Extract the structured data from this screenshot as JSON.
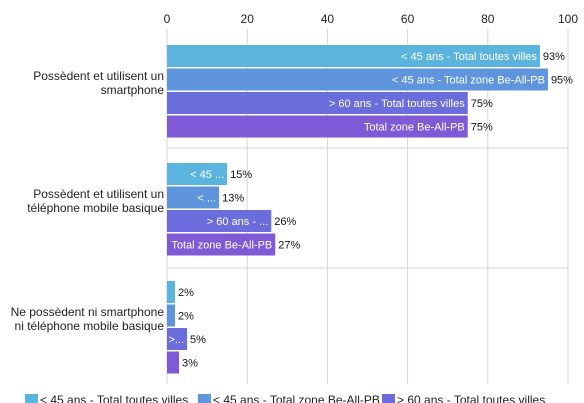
{
  "chart_data": {
    "type": "bar",
    "orientation": "horizontal",
    "categories": [
      [
        "Possèdent et utilisent un",
        "smartphone"
      ],
      [
        "Possèdent et utilisent un",
        "téléphone mobile basique"
      ],
      [
        "Ne possèdent ni smartphone",
        "ni téléphone mobile basique"
      ]
    ],
    "series": [
      {
        "name": "< 45 ans - Total toutes villes",
        "color": "#5ab4de",
        "values": [
          93,
          15,
          2
        ],
        "bar_labels": [
          "< 45 ans - Total toutes villes",
          "< 45 ...",
          ""
        ],
        "value_labels": [
          "93%",
          "15%",
          "2%"
        ]
      },
      {
        "name": "< 45 ans - Total zone Be-All-PB",
        "color": "#5e95dd",
        "values": [
          95,
          13,
          2
        ],
        "bar_labels": [
          "< 45 ans - Total zone Be-All-PB",
          "< ...",
          ""
        ],
        "value_labels": [
          "95%",
          "13%",
          "2%"
        ]
      },
      {
        "name": "> 60 ans - Total toutes villes",
        "color": "#6a6ddb",
        "values": [
          75,
          26,
          5
        ],
        "bar_labels": [
          "> 60 ans - Total toutes villes",
          "> 60 ans - ...",
          ">..."
        ],
        "value_labels": [
          "75%",
          "26%",
          "5%"
        ]
      },
      {
        "name": "Total zone Be-All-PB",
        "color": "#7e5ad6",
        "values": [
          75,
          27,
          3
        ],
        "bar_labels": [
          "Total zone Be-All-PB",
          "Total zone Be-All-PB",
          ""
        ],
        "value_labels": [
          "75%",
          "27%",
          "3%"
        ]
      }
    ],
    "x_ticks": [
      "0",
      "20",
      "40",
      "60",
      "80",
      "100"
    ],
    "xlim": [
      0,
      100
    ],
    "grid": true,
    "legend_position": "bottom"
  }
}
